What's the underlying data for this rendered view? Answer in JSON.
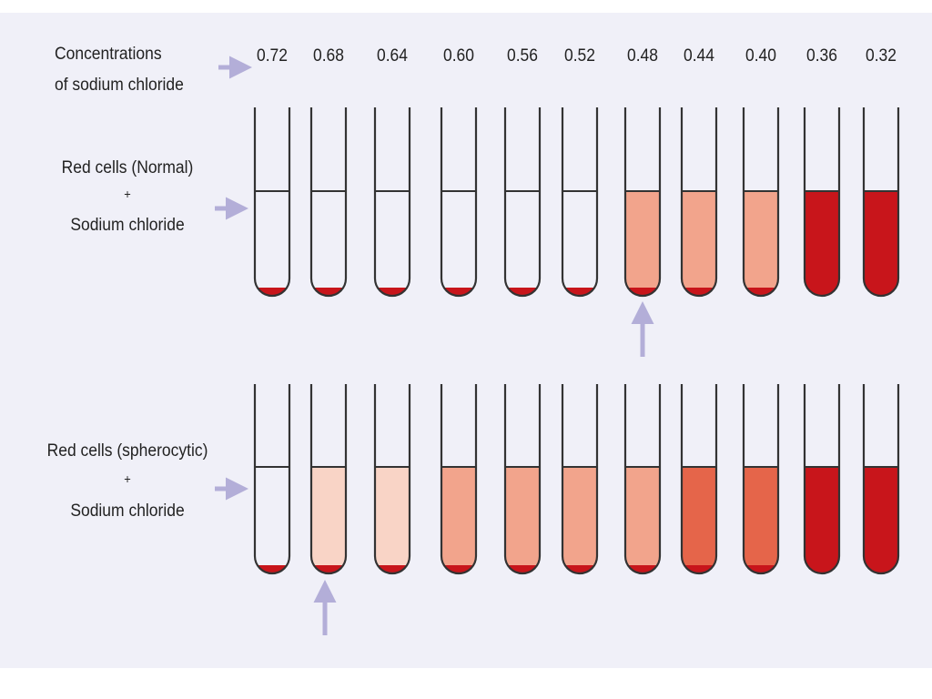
{
  "labels": {
    "concentrations_line1": "Concentrations",
    "concentrations_line2": "of sodium chloride",
    "normal_line1": "Red cells (Normal)",
    "normal_plus": "+",
    "normal_line2": "Sodium chloride",
    "sphero_line1": "Red cells (spherocytic)",
    "sphero_plus": "+",
    "sphero_line2": "Sodium chloride"
  },
  "concentrations": [
    "0.72",
    "0.68",
    "0.64",
    "0.60",
    "0.56",
    "0.52",
    "0.48",
    "0.44",
    "0.40",
    "0.36",
    "0.32"
  ],
  "rows": {
    "normal": {
      "fills": [
        "none",
        "none",
        "none",
        "none",
        "none",
        "none",
        "light",
        "light",
        "light",
        "full",
        "full"
      ],
      "sediment": [
        true,
        true,
        true,
        true,
        true,
        true,
        true,
        true,
        true,
        false,
        false
      ],
      "marker_index": 6
    },
    "spherocytic": {
      "fills": [
        "none",
        "pale",
        "pale",
        "light",
        "light",
        "light",
        "light",
        "medium",
        "medium",
        "full",
        "full"
      ],
      "sediment": [
        true,
        true,
        true,
        true,
        true,
        true,
        true,
        true,
        true,
        false,
        false
      ],
      "marker_index": 1
    }
  },
  "colors": {
    "background": "#f0f0f8",
    "arrow": "#b3aed8",
    "outline": "#333333",
    "sediment": "#c8151b",
    "none": "#ffffff",
    "pale": "#f9d4c6",
    "light": "#f2a48c",
    "medium": "#e5654a",
    "full": "#c8151b"
  }
}
